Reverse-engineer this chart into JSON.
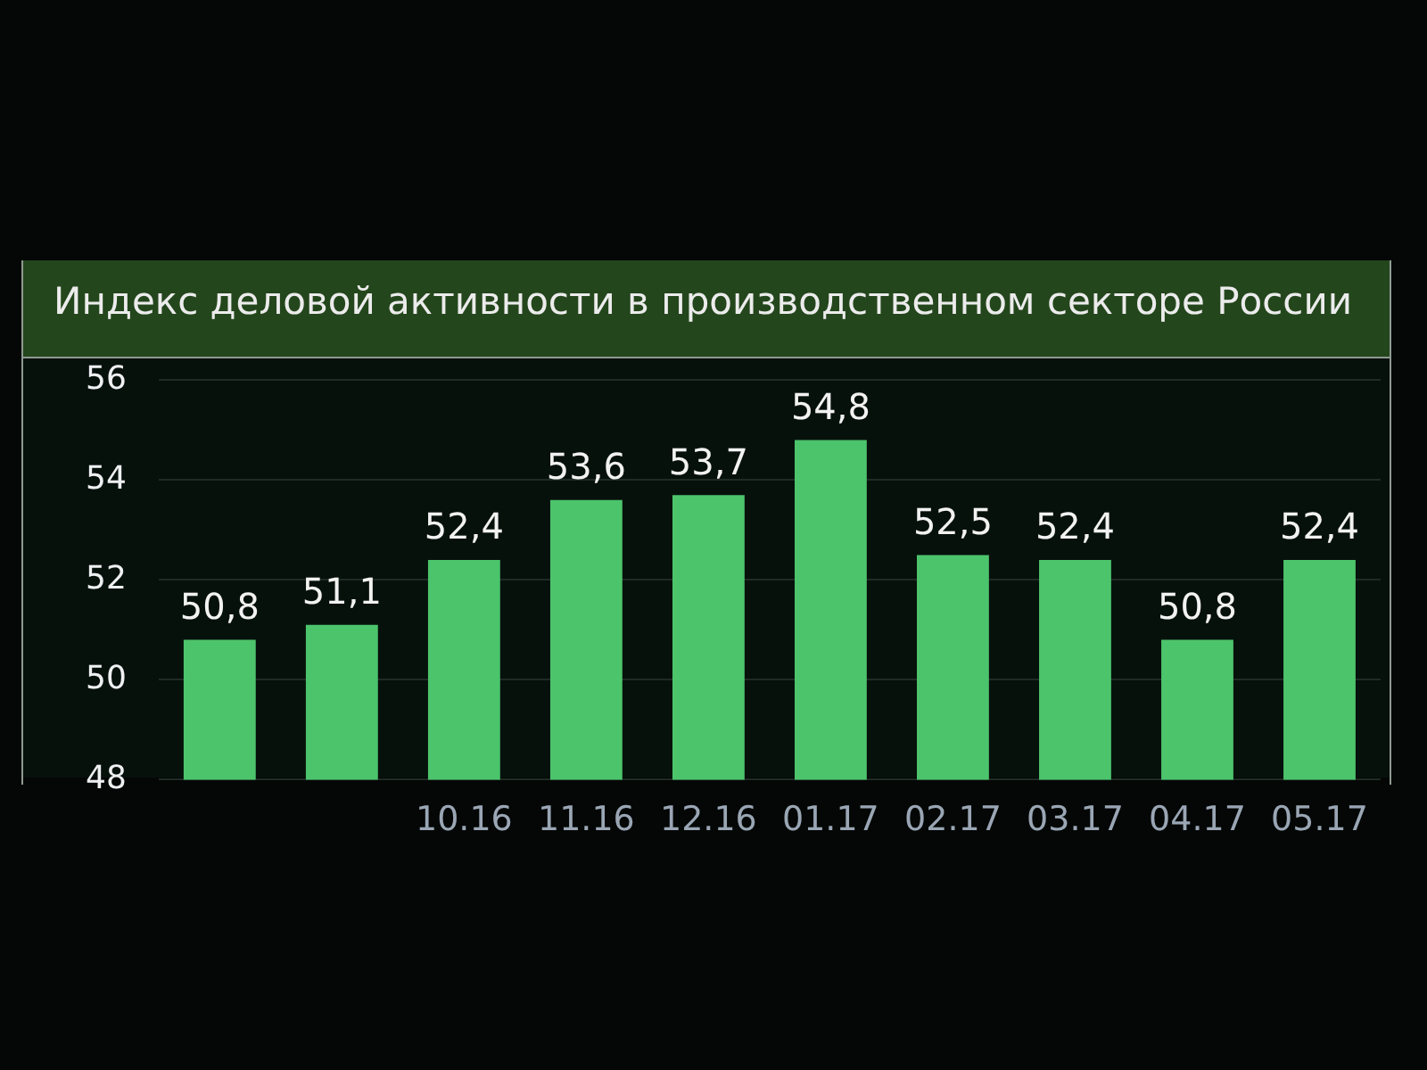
{
  "chart_data": {
    "type": "bar",
    "title": "Индекс деловой активности в производственном секторе России",
    "categories": [
      null,
      null,
      "10.16",
      "11.16",
      "12.16",
      "01.17",
      "02.17",
      "03.17",
      "04.17",
      "05.17"
    ],
    "values": [
      50.8,
      51.1,
      52.4,
      53.6,
      53.7,
      54.8,
      52.5,
      52.4,
      50.8,
      52.4
    ],
    "value_labels": [
      "50,8",
      "51,1",
      "52,4",
      "53,6",
      "53,7",
      "54,8",
      "52,5",
      "52,4",
      "50,8",
      "52,4"
    ],
    "color": "#4cc46c",
    "ylim": [
      48,
      56
    ],
    "yticks": [
      48,
      50,
      52,
      54,
      56
    ],
    "grid": "y"
  }
}
